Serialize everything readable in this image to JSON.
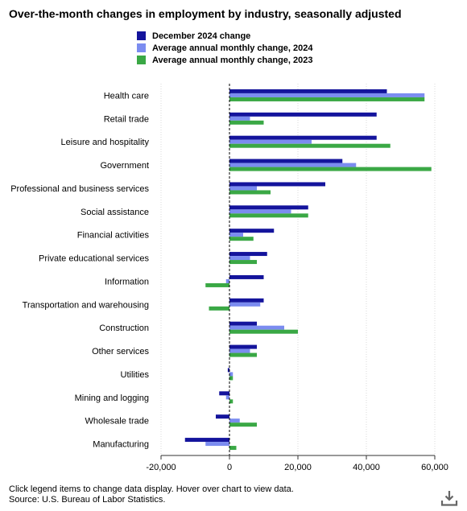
{
  "title": "Over-the-month changes in employment by industry, seasonally adjusted",
  "legend": [
    {
      "label": "December 2024 change",
      "color": "#14149c"
    },
    {
      "label": "Average annual monthly change, 2024",
      "color": "#7b8cf0"
    },
    {
      "label": "Average annual monthly change, 2023",
      "color": "#3aa845"
    }
  ],
  "footer": {
    "note": "Click legend items to change data display. Hover over chart to view data.",
    "source": "Source: U.S. Bureau of Labor Statistics."
  },
  "download_icon": "download-icon",
  "chart_data": {
    "type": "bar",
    "orientation": "horizontal",
    "categories": [
      "Health care",
      "Retail trade",
      "Leisure and hospitality",
      "Government",
      "Professional and business services",
      "Social assistance",
      "Financial activities",
      "Private educational services",
      "Information",
      "Transportation and warehousing",
      "Construction",
      "Other services",
      "Utilities",
      "Mining and logging",
      "Wholesale trade",
      "Manufacturing"
    ],
    "series": [
      {
        "name": "December 2024 change",
        "color": "#14149c",
        "values": [
          46000,
          43000,
          43000,
          33000,
          28000,
          23000,
          13000,
          11000,
          10000,
          10000,
          8000,
          8000,
          -500,
          -3000,
          -4000,
          -13000
        ]
      },
      {
        "name": "Average annual monthly change, 2024",
        "color": "#7b8cf0",
        "values": [
          57000,
          6000,
          24000,
          37000,
          8000,
          18000,
          4000,
          6000,
          -1000,
          9000,
          16000,
          6000,
          1000,
          -1000,
          3000,
          -7000
        ]
      },
      {
        "name": "Average annual monthly change, 2023",
        "color": "#3aa845",
        "values": [
          57000,
          10000,
          47000,
          59000,
          12000,
          23000,
          7000,
          8000,
          -7000,
          -6000,
          20000,
          8000,
          1000,
          1000,
          8000,
          2000
        ]
      }
    ],
    "xlim": [
      -20000,
      60000
    ],
    "xticks": [
      "-20,000",
      "0",
      "20,000",
      "40,000",
      "60,000"
    ],
    "xtick_values": [
      -20000,
      0,
      20000,
      40000,
      60000
    ],
    "grid": "vertical dotted",
    "legend_position": "top"
  }
}
